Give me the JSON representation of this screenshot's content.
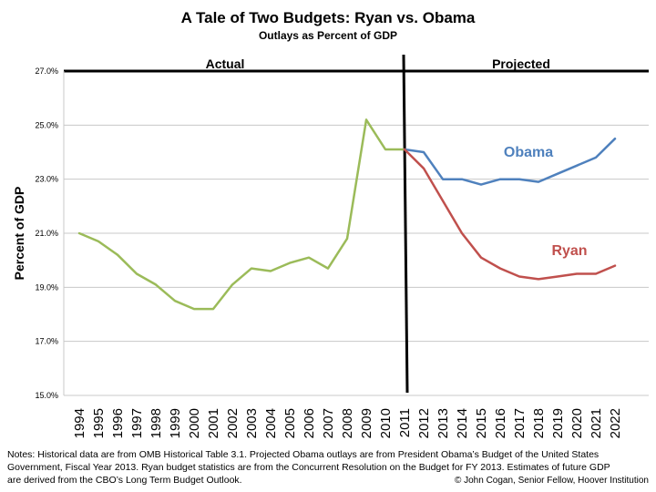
{
  "chart_data": {
    "type": "line",
    "title": "A Tale of Two Budgets: Ryan vs. Obama",
    "subtitle": "Outlays as Percent of GDP",
    "xlabel": "",
    "ylabel": "Percent of GDP",
    "ylim": [
      15.0,
      27.0
    ],
    "yticks": [
      "15.0%",
      "17.0%",
      "19.0%",
      "21.0%",
      "23.0%",
      "25.0%",
      "27.0%"
    ],
    "grid": "horizontal",
    "x": [
      "1994",
      "1995",
      "1996",
      "1997",
      "1998",
      "1999",
      "2000",
      "2001",
      "2002",
      "2003",
      "2004",
      "2005",
      "2006",
      "2007",
      "2008",
      "2009",
      "2010",
      "2011",
      "2012",
      "2013",
      "2014",
      "2015",
      "2016",
      "2017",
      "2018",
      "2019",
      "2020",
      "2021",
      "2022"
    ],
    "sections": {
      "actual": "Actual",
      "projected": "Projected"
    },
    "divider_after": "2011",
    "series": [
      {
        "name": "",
        "color": "#9BBB59",
        "x": [
          "1994",
          "1995",
          "1996",
          "1997",
          "1998",
          "1999",
          "2000",
          "2001",
          "2002",
          "2003",
          "2004",
          "2005",
          "2006",
          "2007",
          "2008",
          "2009",
          "2010",
          "2011"
        ],
        "values": [
          21.0,
          20.7,
          20.2,
          19.5,
          19.1,
          18.5,
          18.2,
          18.2,
          19.1,
          19.7,
          19.6,
          19.9,
          20.1,
          19.7,
          20.8,
          25.2,
          24.1,
          24.1
        ]
      },
      {
        "name": "Obama",
        "color": "#4F81BD",
        "x": [
          "2011",
          "2012",
          "2013",
          "2014",
          "2015",
          "2016",
          "2017",
          "2018",
          "2019",
          "2020",
          "2021",
          "2022"
        ],
        "values": [
          24.1,
          24.0,
          23.0,
          23.0,
          22.8,
          23.0,
          23.0,
          22.9,
          23.2,
          23.5,
          23.8,
          24.5
        ]
      },
      {
        "name": "Ryan",
        "color": "#C0504D",
        "x": [
          "2011",
          "2012",
          "2013",
          "2014",
          "2015",
          "2016",
          "2017",
          "2018",
          "2019",
          "2020",
          "2021",
          "2022"
        ],
        "values": [
          24.1,
          23.4,
          22.2,
          21.0,
          20.1,
          19.7,
          19.4,
          19.3,
          19.4,
          19.5,
          19.5,
          19.8
        ]
      }
    ],
    "notes": [
      "Notes: Historical data are from OMB Historical Table 3.1.  Projected Obama outlays are from President Obama’s Budget of the United States",
      "Government, Fiscal Year 2013.  Ryan budget statistics are from the Concurrent Resolution on the Budget for FY 2013.  Estimates of future GDP",
      "are derived from the CBO’s Long Term Budget Outlook."
    ],
    "credit": "© John Cogan, Senior Fellow, Hoover Institution"
  }
}
